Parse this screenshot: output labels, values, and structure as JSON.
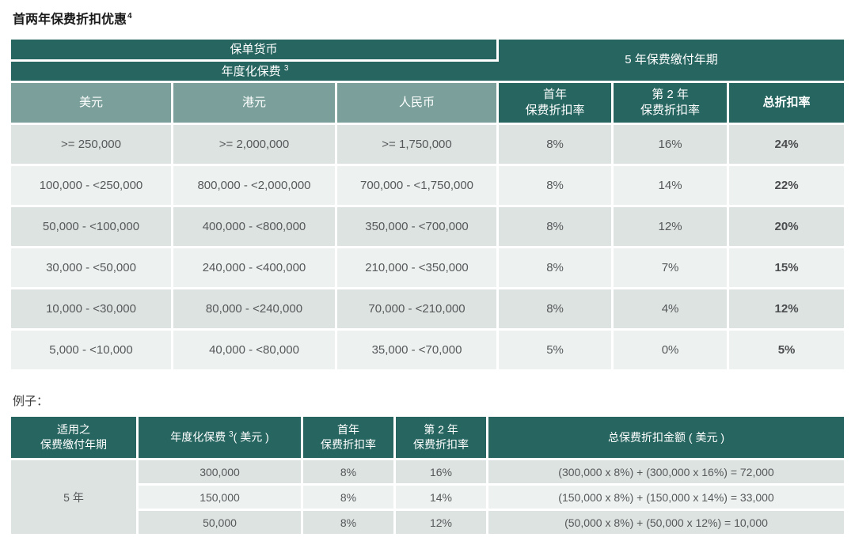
{
  "page_title": {
    "text": "首两年保费折扣优惠",
    "sup": "4"
  },
  "example_label": "例子：",
  "colors": {
    "header_dark_teal": "#266560",
    "header_light_teal": "#7ba09b",
    "row_dark": "#dce3e1",
    "row_light": "#edf1f0",
    "body_text": "#57585a"
  },
  "table1": {
    "header": {
      "policy_currency": "保单货币",
      "annualized_premium": "年度化保费",
      "annualized_premium_sup": "3",
      "payment_term": "5 年保费缴付年期",
      "currencies": [
        "美元",
        "港元",
        "人民币"
      ],
      "first_year": "首年\n保费折扣率",
      "second_year": "第 2 年\n保费折扣率",
      "total": "总折扣率"
    },
    "rows": [
      {
        "usd": ">= 250,000",
        "hkd": ">= 2,000,000",
        "rmb": ">= 1,750,000",
        "first_year": "8%",
        "second_year": "16%",
        "total": "24%"
      },
      {
        "usd": "100,000 - <250,000",
        "hkd": "800,000 - <2,000,000",
        "rmb": "700,000 - <1,750,000",
        "first_year": "8%",
        "second_year": "14%",
        "total": "22%"
      },
      {
        "usd": "50,000 - <100,000",
        "hkd": "400,000 - <800,000",
        "rmb": "350,000 - <700,000",
        "first_year": "8%",
        "second_year": "12%",
        "total": "20%"
      },
      {
        "usd": "30,000 - <50,000",
        "hkd": "240,000 - <400,000",
        "rmb": "210,000 - <350,000",
        "first_year": "8%",
        "second_year": "7%",
        "total": "15%"
      },
      {
        "usd": "10,000 - <30,000",
        "hkd": "80,000 - <240,000",
        "rmb": "70,000 - <210,000",
        "first_year": "8%",
        "second_year": "4%",
        "total": "12%"
      },
      {
        "usd": "5,000 - <10,000",
        "hkd": "40,000 - <80,000",
        "rmb": "35,000 - <70,000",
        "first_year": "5%",
        "second_year": "0%",
        "total": "5%"
      }
    ]
  },
  "table2": {
    "header": {
      "term": "适用之\n保费缴付年期",
      "annualized_premium": "年度化保费",
      "annualized_premium_sup": "3",
      "annualized_premium_suffix": "( 美元 )",
      "first_year": "首年\n保费折扣率",
      "second_year": "第 2 年\n保费折扣率",
      "total_amount": "总保费折扣金额 ( 美元 )"
    },
    "term_value": "5 年",
    "rows": [
      {
        "premium": "300,000",
        "first_year": "8%",
        "second_year": "16%",
        "formula": "(300,000 x 8%) + (300,000 x 16%) = 72,000"
      },
      {
        "premium": "150,000",
        "first_year": "8%",
        "second_year": "14%",
        "formula": "(150,000 x 8%) + (150,000 x 14%) = 33,000"
      },
      {
        "premium": "50,000",
        "first_year": "8%",
        "second_year": "12%",
        "formula": "(50,000 x 8%) + (50,000 x 12%) = 10,000"
      }
    ]
  }
}
